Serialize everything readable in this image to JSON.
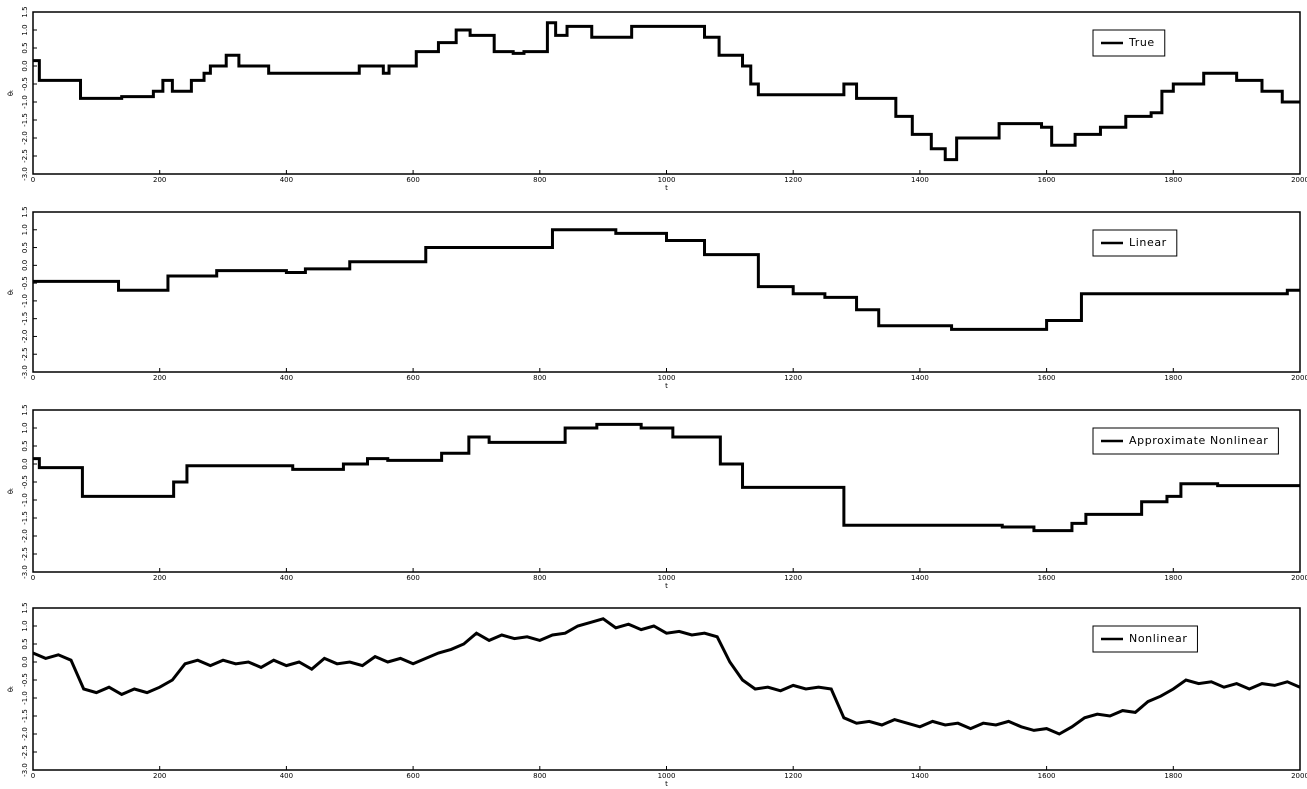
{
  "chart_data": [
    {
      "type": "line",
      "legend": "upper right",
      "grid": false,
      "xlabel": "t",
      "ylabel": "θₜ",
      "xlim": [
        0,
        2000
      ],
      "ylim": [
        -3,
        1.5
      ],
      "xticks": [
        0,
        200,
        400,
        600,
        800,
        1000,
        1200,
        1400,
        1600,
        1800,
        2000
      ],
      "yticks": [
        {
          "value": -3,
          "label": "-3.0"
        },
        -2.5,
        {
          "value": -2,
          "label": "-2.0"
        },
        -1.5,
        {
          "value": -1,
          "label": "-1.0"
        },
        -0.5,
        {
          "value": 0,
          "label": "0.0"
        },
        0.5,
        {
          "value": 1,
          "label": "1.0"
        },
        1.5
      ],
      "x": [
        0,
        10,
        10,
        75,
        75,
        140,
        140,
        190,
        190,
        205,
        205,
        220,
        220,
        250,
        250,
        270,
        270,
        280,
        280,
        305,
        305,
        325,
        325,
        372,
        372,
        515,
        515,
        553,
        553,
        562,
        562,
        605,
        605,
        640,
        640,
        668,
        668,
        690,
        690,
        728,
        728,
        758,
        758,
        775,
        775,
        812,
        812,
        825,
        825,
        843,
        843,
        882,
        882,
        945,
        945,
        1060,
        1060,
        1083,
        1083,
        1120,
        1120,
        1133,
        1133,
        1145,
        1145,
        1280,
        1280,
        1300,
        1300,
        1362,
        1362,
        1388,
        1388,
        1418,
        1418,
        1440,
        1440,
        1458,
        1458,
        1525,
        1525,
        1592,
        1592,
        1608,
        1608,
        1645,
        1645,
        1685,
        1685,
        1725,
        1725,
        1765,
        1765,
        1782,
        1782,
        1800,
        1800,
        1848,
        1848,
        1900,
        1900,
        1940,
        1940,
        1972,
        1972,
        2000
      ],
      "series": [
        {
          "name": "True",
          "color": "#000000",
          "values": [
            0.15,
            0.15,
            -0.4,
            -0.4,
            -0.9,
            -0.9,
            -0.85,
            -0.85,
            -0.7,
            -0.7,
            -0.4,
            -0.4,
            -0.7,
            -0.7,
            -0.4,
            -0.4,
            -0.2,
            -0.2,
            0.0,
            0.0,
            0.3,
            0.3,
            0.0,
            0.0,
            -0.2,
            -0.2,
            0.0,
            0.0,
            -0.2,
            -0.2,
            0.0,
            0.0,
            0.4,
            0.4,
            0.65,
            0.65,
            1.0,
            1.0,
            0.85,
            0.85,
            0.4,
            0.4,
            0.35,
            0.35,
            0.4,
            0.4,
            1.2,
            1.2,
            0.85,
            0.85,
            1.1,
            1.1,
            0.8,
            0.8,
            1.1,
            1.1,
            0.8,
            0.8,
            0.3,
            0.3,
            0.0,
            0.0,
            -0.5,
            -0.5,
            -0.8,
            -0.8,
            -0.5,
            -0.5,
            -0.9,
            -0.9,
            -1.4,
            -1.4,
            -1.9,
            -1.9,
            -2.3,
            -2.3,
            -2.6,
            -2.6,
            -2.0,
            -2.0,
            -1.6,
            -1.6,
            -1.7,
            -1.7,
            -2.2,
            -2.2,
            -1.9,
            -1.9,
            -1.7,
            -1.7,
            -1.4,
            -1.4,
            -1.3,
            -1.3,
            -0.7,
            -0.7,
            -0.5,
            -0.5,
            -0.2,
            -0.2,
            -0.4,
            -0.4,
            -0.7,
            -0.7,
            -1.0,
            -1.0
          ]
        }
      ]
    },
    {
      "type": "line",
      "legend": "upper right",
      "grid": false,
      "xlabel": "t",
      "ylabel": "θₜ",
      "xlim": [
        0,
        2000
      ],
      "ylim": [
        -3,
        1.5
      ],
      "xticks": [
        0,
        200,
        400,
        600,
        800,
        1000,
        1200,
        1400,
        1600,
        1800,
        2000
      ],
      "yticks": [
        {
          "value": -3,
          "label": "-3.0"
        },
        -2.5,
        {
          "value": -2,
          "label": "-2.0"
        },
        -1.5,
        {
          "value": -1,
          "label": "-1.0"
        },
        -0.5,
        {
          "value": 0,
          "label": "0.0"
        },
        0.5,
        {
          "value": 1,
          "label": "1.0"
        },
        1.5
      ],
      "x": [
        0,
        135,
        135,
        213,
        213,
        290,
        290,
        400,
        400,
        430,
        430,
        500,
        500,
        620,
        620,
        820,
        820,
        920,
        920,
        1000,
        1000,
        1060,
        1060,
        1145,
        1145,
        1200,
        1200,
        1250,
        1250,
        1300,
        1300,
        1335,
        1335,
        1450,
        1450,
        1600,
        1600,
        1655,
        1655,
        1980,
        1980,
        2000
      ],
      "series": [
        {
          "name": "Linear",
          "color": "#000000",
          "values": [
            -0.45,
            -0.45,
            -0.7,
            -0.7,
            -0.3,
            -0.3,
            -0.15,
            -0.15,
            -0.2,
            -0.2,
            -0.1,
            -0.1,
            0.1,
            0.1,
            0.5,
            0.5,
            1.0,
            1.0,
            0.9,
            0.9,
            0.7,
            0.7,
            0.3,
            0.3,
            -0.6,
            -0.6,
            -0.8,
            -0.8,
            -0.9,
            -0.9,
            -1.25,
            -1.25,
            -1.7,
            -1.7,
            -1.8,
            -1.8,
            -1.55,
            -1.55,
            -0.8,
            -0.8,
            -0.7,
            -0.7
          ]
        }
      ]
    },
    {
      "type": "line",
      "legend": "upper right",
      "grid": false,
      "xlabel": "t",
      "ylabel": "θₜ",
      "xlim": [
        0,
        2000
      ],
      "ylim": [
        -3,
        1.5
      ],
      "xticks": [
        0,
        200,
        400,
        600,
        800,
        1000,
        1200,
        1400,
        1600,
        1800,
        2000
      ],
      "yticks": [
        {
          "value": -3,
          "label": "-3.0"
        },
        -2.5,
        {
          "value": -2,
          "label": "-2.0"
        },
        -1.5,
        {
          "value": -1,
          "label": "-1.0"
        },
        -0.5,
        {
          "value": 0,
          "label": "0.0"
        },
        0.5,
        {
          "value": 1,
          "label": "1.0"
        },
        1.5
      ],
      "x": [
        0,
        10,
        10,
        78,
        78,
        222,
        222,
        243,
        243,
        410,
        410,
        490,
        490,
        528,
        528,
        560,
        560,
        645,
        645,
        688,
        688,
        720,
        720,
        840,
        840,
        890,
        890,
        960,
        960,
        1010,
        1010,
        1085,
        1085,
        1120,
        1120,
        1280,
        1280,
        1530,
        1530,
        1580,
        1580,
        1640,
        1640,
        1662,
        1662,
        1750,
        1750,
        1790,
        1790,
        1812,
        1812,
        1870,
        1870,
        2000
      ],
      "series": [
        {
          "name": "Approximate Nonlinear",
          "color": "#000000",
          "values": [
            0.15,
            0.15,
            -0.1,
            -0.1,
            -0.9,
            -0.9,
            -0.5,
            -0.5,
            -0.05,
            -0.05,
            -0.15,
            -0.15,
            0.0,
            0.0,
            0.15,
            0.15,
            0.1,
            0.1,
            0.3,
            0.3,
            0.75,
            0.75,
            0.6,
            0.6,
            1.0,
            1.0,
            1.1,
            1.1,
            1.0,
            1.0,
            0.75,
            0.75,
            0.0,
            0.0,
            -0.65,
            -0.65,
            -1.7,
            -1.7,
            -1.75,
            -1.75,
            -1.85,
            -1.85,
            -1.65,
            -1.65,
            -1.4,
            -1.4,
            -1.05,
            -1.05,
            -0.9,
            -0.9,
            -0.55,
            -0.55,
            -0.6,
            -0.6
          ]
        }
      ]
    },
    {
      "type": "line",
      "legend": "upper right",
      "grid": false,
      "xlabel": "t",
      "ylabel": "θₜ",
      "xlim": [
        0,
        2000
      ],
      "ylim": [
        -3,
        1.5
      ],
      "xticks": [
        0,
        200,
        400,
        600,
        800,
        1000,
        1200,
        1400,
        1600,
        1800,
        2000
      ],
      "yticks": [
        {
          "value": -3,
          "label": "-3.0"
        },
        -2.5,
        {
          "value": -2,
          "label": "-2.0"
        },
        -1.5,
        {
          "value": -1,
          "label": "-1.0"
        },
        -0.5,
        {
          "value": 0,
          "label": "0.0"
        },
        0.5,
        {
          "value": 1,
          "label": "1.0"
        },
        1.5
      ],
      "x": [
        0,
        20,
        40,
        60,
        80,
        100,
        120,
        140,
        160,
        180,
        200,
        220,
        240,
        260,
        280,
        300,
        320,
        340,
        360,
        380,
        400,
        420,
        440,
        460,
        480,
        500,
        520,
        540,
        560,
        580,
        600,
        620,
        640,
        660,
        680,
        700,
        720,
        740,
        760,
        780,
        800,
        820,
        840,
        860,
        880,
        900,
        920,
        940,
        960,
        980,
        1000,
        1020,
        1040,
        1060,
        1080,
        1100,
        1120,
        1140,
        1160,
        1180,
        1200,
        1220,
        1240,
        1260,
        1280,
        1300,
        1320,
        1340,
        1360,
        1380,
        1400,
        1420,
        1440,
        1460,
        1480,
        1500,
        1520,
        1540,
        1560,
        1580,
        1600,
        1620,
        1640,
        1660,
        1680,
        1700,
        1720,
        1740,
        1760,
        1780,
        1800,
        1820,
        1840,
        1860,
        1880,
        1900,
        1920,
        1940,
        1960,
        1980,
        2000
      ],
      "series": [
        {
          "name": "Nonlinear",
          "color": "#000000",
          "values": [
            0.25,
            0.1,
            0.2,
            0.05,
            -0.75,
            -0.85,
            -0.7,
            -0.9,
            -0.75,
            -0.85,
            -0.7,
            -0.5,
            -0.05,
            0.05,
            -0.1,
            0.05,
            -0.05,
            0.0,
            -0.15,
            0.05,
            -0.1,
            0.0,
            -0.2,
            0.1,
            -0.05,
            0.0,
            -0.1,
            0.15,
            0.0,
            0.1,
            -0.05,
            0.1,
            0.25,
            0.35,
            0.5,
            0.8,
            0.6,
            0.75,
            0.65,
            0.7,
            0.6,
            0.75,
            0.8,
            1.0,
            1.1,
            1.2,
            0.95,
            1.05,
            0.9,
            1.0,
            0.8,
            0.85,
            0.75,
            0.8,
            0.7,
            0.0,
            -0.5,
            -0.75,
            -0.7,
            -0.8,
            -0.65,
            -0.75,
            -0.7,
            -0.75,
            -1.55,
            -1.7,
            -1.65,
            -1.75,
            -1.6,
            -1.7,
            -1.8,
            -1.65,
            -1.75,
            -1.7,
            -1.85,
            -1.7,
            -1.75,
            -1.65,
            -1.8,
            -1.9,
            -1.85,
            -2.0,
            -1.8,
            -1.55,
            -1.45,
            -1.5,
            -1.35,
            -1.4,
            -1.1,
            -0.95,
            -0.75,
            -0.5,
            -0.6,
            -0.55,
            -0.7,
            -0.6,
            -0.75,
            -0.6,
            -0.65,
            -0.55,
            -0.7
          ]
        }
      ]
    }
  ]
}
